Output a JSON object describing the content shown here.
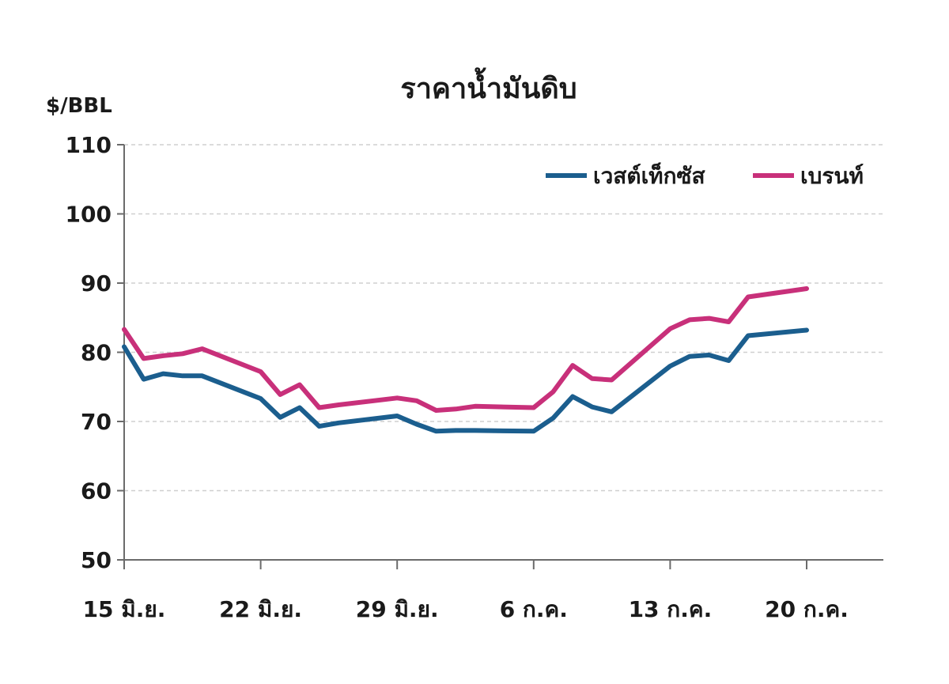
{
  "chart_data": {
    "type": "line",
    "title": "ราคาน้ำมันดิบ",
    "ylabel": "$/BBL",
    "xlabel": "",
    "ylim": [
      50,
      110
    ],
    "yticks": [
      50,
      60,
      70,
      80,
      90,
      100,
      110
    ],
    "xlim": [
      0,
      35
    ],
    "xtick_positions": [
      0,
      7,
      14,
      21,
      28,
      35
    ],
    "xtick_labels": [
      "15 มิ.ย.",
      "22 มิ.ย.",
      "29 มิ.ย.",
      "6 ก.ค.",
      "13 ก.ค.",
      "20 ก.ค."
    ],
    "grid": true,
    "legend_position": "top-right",
    "x": [
      0,
      1,
      2,
      3,
      4,
      7,
      8,
      9,
      10,
      11,
      14,
      15,
      16,
      17,
      18,
      21,
      22,
      23,
      24,
      25,
      28,
      29,
      30,
      31,
      32,
      35
    ],
    "series": [
      {
        "name": "เวสต์เท็กซัส",
        "color": "#1b5e8e",
        "values": [
          80.8,
          76.1,
          76.9,
          76.6,
          76.6,
          73.3,
          70.6,
          72.0,
          69.3,
          69.8,
          70.8,
          69.6,
          68.6,
          68.7,
          68.7,
          68.6,
          70.5,
          73.6,
          72.1,
          71.4,
          78.0,
          79.4,
          79.6,
          78.8,
          82.4,
          83.2
        ]
      },
      {
        "name": "เบรนท์",
        "color": "#c8307a",
        "values": [
          83.3,
          79.1,
          79.5,
          79.8,
          80.5,
          77.2,
          73.9,
          75.3,
          72.0,
          72.4,
          73.4,
          73.0,
          71.6,
          71.8,
          72.2,
          72.0,
          74.3,
          78.1,
          76.2,
          76.0,
          83.4,
          84.7,
          84.9,
          84.4,
          88.0,
          89.2
        ]
      }
    ]
  }
}
